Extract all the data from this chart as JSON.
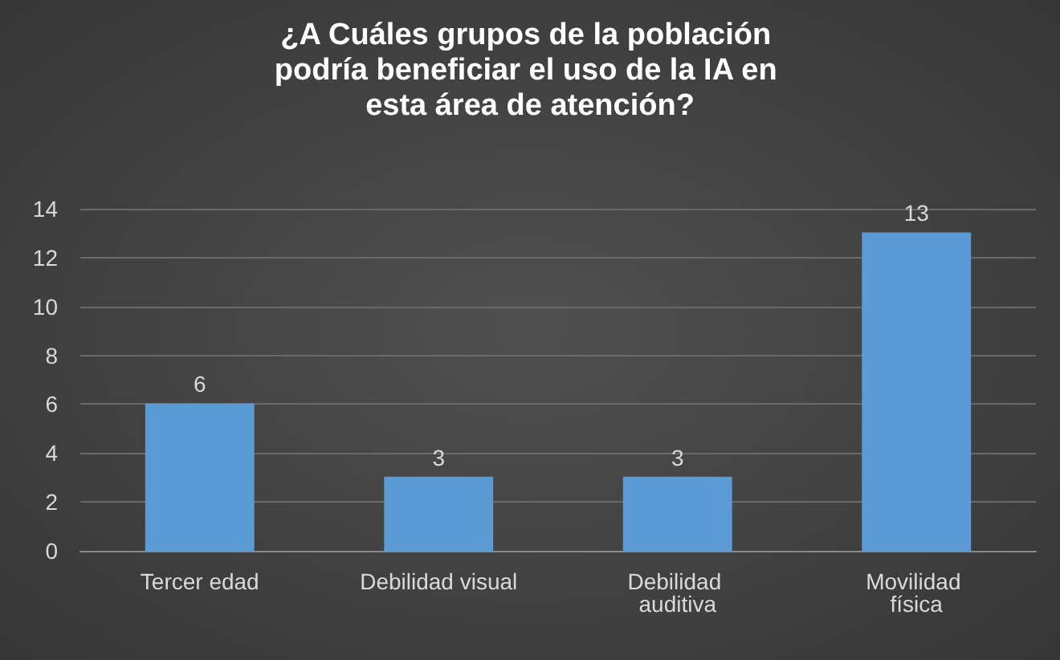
{
  "chart_data": {
    "type": "bar",
    "title": "¿A Cuáles grupos de la población podría beneficiar el uso de la IA en esta área de atención?",
    "categories": [
      "Tercer edad",
      "Debilidad visual",
      "Debilidad auditiva",
      "Movilidad física"
    ],
    "values": [
      6,
      3,
      3,
      13
    ],
    "color": "#5b9bd5",
    "ylim": [
      0,
      14
    ],
    "yticks": [
      0,
      2,
      4,
      6,
      8,
      10,
      12,
      14
    ],
    "grid": "y",
    "data_labels": true
  }
}
